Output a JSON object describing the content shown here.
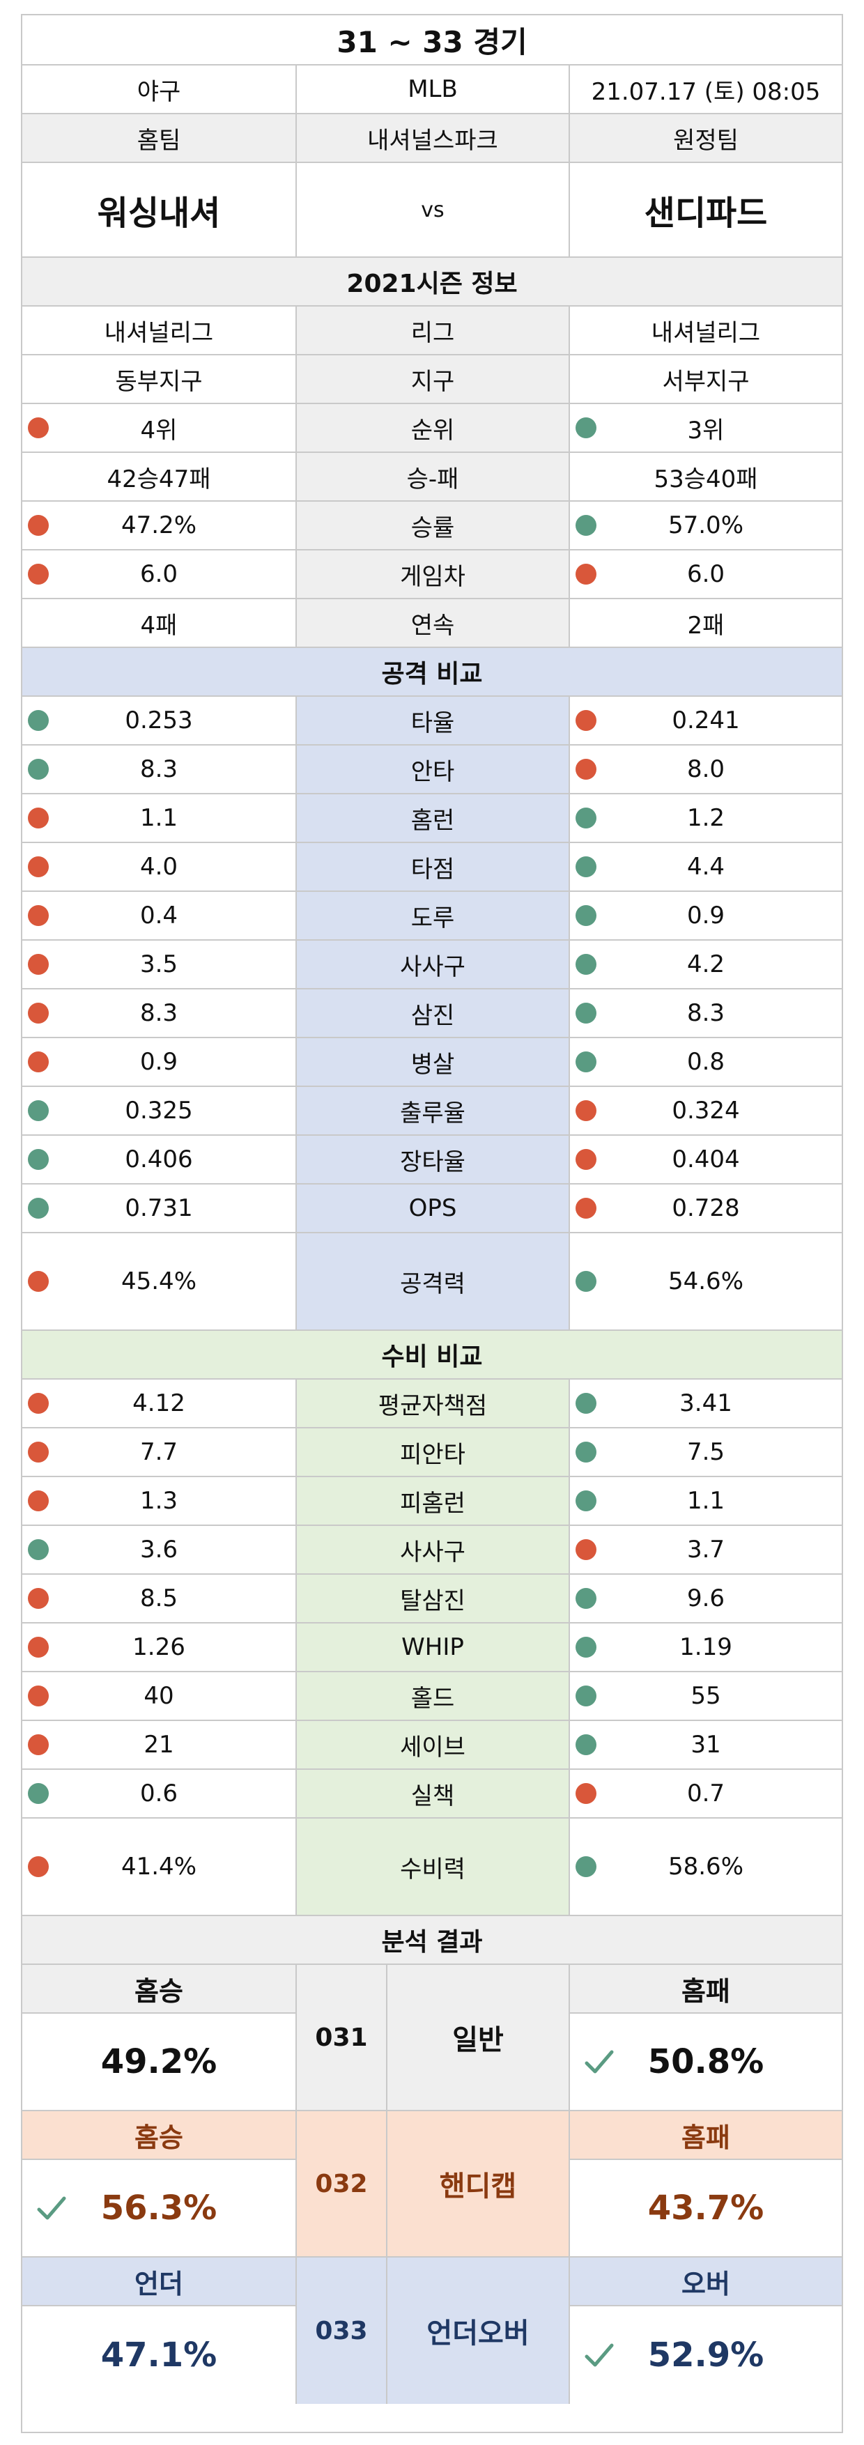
{
  "header": {
    "title": "31 ~ 33 경기",
    "sport": "야구",
    "league_name": "MLB",
    "datetime": "21.07.17 (토) 08:05",
    "home_label": "홈팀",
    "stadium": "내셔널스파크",
    "away_label": "원정팀",
    "home_team": "워싱내셔",
    "vs": "vs",
    "away_team": "샌디파드"
  },
  "season": {
    "title": "2021시즌 정보",
    "rows": [
      {
        "label": "리그",
        "home": "내셔널리그",
        "away": "내셔널리그",
        "home_dot": "",
        "away_dot": ""
      },
      {
        "label": "지구",
        "home": "동부지구",
        "away": "서부지구",
        "home_dot": "",
        "away_dot": ""
      },
      {
        "label": "순위",
        "home": "4위",
        "away": "3위",
        "home_dot": "red",
        "away_dot": "green"
      },
      {
        "label": "승-패",
        "home": "42승47패",
        "away": "53승40패",
        "home_dot": "",
        "away_dot": ""
      },
      {
        "label": "승률",
        "home": "47.2%",
        "away": "57.0%",
        "home_dot": "red",
        "away_dot": "green"
      },
      {
        "label": "게임차",
        "home": "6.0",
        "away": "6.0",
        "home_dot": "red",
        "away_dot": "red"
      },
      {
        "label": "연속",
        "home": "4패",
        "away": "2패",
        "home_dot": "",
        "away_dot": ""
      }
    ]
  },
  "attack": {
    "title": "공격 비교",
    "rows": [
      {
        "label": "타율",
        "home": "0.253",
        "away": "0.241",
        "home_dot": "green",
        "away_dot": "red"
      },
      {
        "label": "안타",
        "home": "8.3",
        "away": "8.0",
        "home_dot": "green",
        "away_dot": "red"
      },
      {
        "label": "홈런",
        "home": "1.1",
        "away": "1.2",
        "home_dot": "red",
        "away_dot": "green"
      },
      {
        "label": "타점",
        "home": "4.0",
        "away": "4.4",
        "home_dot": "red",
        "away_dot": "green"
      },
      {
        "label": "도루",
        "home": "0.4",
        "away": "0.9",
        "home_dot": "red",
        "away_dot": "green"
      },
      {
        "label": "사사구",
        "home": "3.5",
        "away": "4.2",
        "home_dot": "red",
        "away_dot": "green"
      },
      {
        "label": "삼진",
        "home": "8.3",
        "away": "8.3",
        "home_dot": "red",
        "away_dot": "green"
      },
      {
        "label": "병살",
        "home": "0.9",
        "away": "0.8",
        "home_dot": "red",
        "away_dot": "green"
      },
      {
        "label": "출루율",
        "home": "0.325",
        "away": "0.324",
        "home_dot": "green",
        "away_dot": "red"
      },
      {
        "label": "장타율",
        "home": "0.406",
        "away": "0.404",
        "home_dot": "green",
        "away_dot": "red"
      },
      {
        "label": "OPS",
        "home": "0.731",
        "away": "0.728",
        "home_dot": "green",
        "away_dot": "red"
      }
    ],
    "power": {
      "label": "공격력",
      "home": "45.4%",
      "away": "54.6%",
      "home_dot": "red",
      "away_dot": "green"
    }
  },
  "defense": {
    "title": "수비 비교",
    "rows": [
      {
        "label": "평균자책점",
        "home": "4.12",
        "away": "3.41",
        "home_dot": "red",
        "away_dot": "green"
      },
      {
        "label": "피안타",
        "home": "7.7",
        "away": "7.5",
        "home_dot": "red",
        "away_dot": "green"
      },
      {
        "label": "피홈런",
        "home": "1.3",
        "away": "1.1",
        "home_dot": "red",
        "away_dot": "green"
      },
      {
        "label": "사사구",
        "home": "3.6",
        "away": "3.7",
        "home_dot": "green",
        "away_dot": "red"
      },
      {
        "label": "탈삼진",
        "home": "8.5",
        "away": "9.6",
        "home_dot": "red",
        "away_dot": "green"
      },
      {
        "label": "WHIP",
        "home": "1.26",
        "away": "1.19",
        "home_dot": "red",
        "away_dot": "green"
      },
      {
        "label": "홀드",
        "home": "40",
        "away": "55",
        "home_dot": "red",
        "away_dot": "green"
      },
      {
        "label": "세이브",
        "home": "21",
        "away": "31",
        "home_dot": "red",
        "away_dot": "green"
      },
      {
        "label": "실책",
        "home": "0.6",
        "away": "0.7",
        "home_dot": "green",
        "away_dot": "red"
      }
    ],
    "power": {
      "label": "수비력",
      "home": "41.4%",
      "away": "58.6%",
      "home_dot": "red",
      "away_dot": "green"
    }
  },
  "analysis": {
    "title": "분석 결과",
    "blocks": [
      {
        "code": "031",
        "name": "일반",
        "left_head": "홈승",
        "left_val": "49.2%",
        "right_head": "홈패",
        "right_val": "50.8%",
        "pick": "right",
        "theme": "gray",
        "text_color": "#111111"
      },
      {
        "code": "032",
        "name": "핸디캡",
        "left_head": "홈승",
        "left_val": "56.3%",
        "right_head": "홈패",
        "right_val": "43.7%",
        "pick": "left",
        "theme": "peach",
        "text_color": "#8a3a10"
      },
      {
        "code": "033",
        "name": "언더오버",
        "left_head": "언더",
        "left_val": "47.1%",
        "right_head": "오버",
        "right_val": "52.9%",
        "pick": "right",
        "theme": "navy",
        "text_color": "#1f3864"
      }
    ]
  },
  "colors": {
    "dot_red": "#d9573a",
    "dot_green": "#5a9b82",
    "check": "#5a9b82"
  }
}
